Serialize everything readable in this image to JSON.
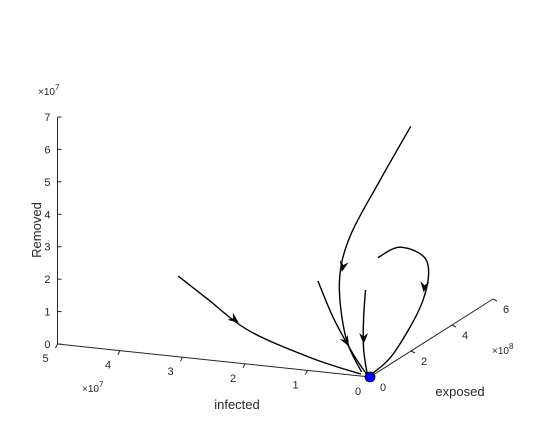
{
  "chart_data": {
    "type": "line",
    "projection": "3d",
    "xlabel": "infected",
    "ylabel": "exposed",
    "zlabel": "Removed",
    "x_multiplier": "×10^7",
    "y_multiplier": "×10^8",
    "z_multiplier": "×10^7",
    "x_ticks": [
      "0",
      "1",
      "2",
      "3",
      "4",
      "5"
    ],
    "y_ticks": [
      "0",
      "2",
      "4",
      "6"
    ],
    "z_ticks": [
      "0",
      "1",
      "2",
      "3",
      "4",
      "5",
      "6",
      "7"
    ],
    "xlim": [
      0,
      5
    ],
    "ylim": [
      0,
      6
    ],
    "zlim": [
      0,
      7
    ],
    "grid": false,
    "equilibrium_point": {
      "x": 0,
      "y": 0,
      "z": 0,
      "color": "#0000ff"
    },
    "line_color": "#000000",
    "trajectories": [
      {
        "points": [
          [
            0.3,
            2.9,
            6.5
          ],
          [
            0.6,
            2.3,
            5.0
          ],
          [
            0.85,
            1.6,
            3.5
          ],
          [
            0.85,
            1.1,
            2.3
          ],
          [
            0.55,
            0.5,
            0.9
          ],
          [
            0.15,
            0.05,
            0.1
          ]
        ]
      },
      {
        "points": [
          [
            0.3,
            1.3,
            3.1
          ],
          [
            0.0,
            1.5,
            3.4
          ],
          [
            -0.45,
            1.4,
            3.1
          ],
          [
            -0.55,
            0.9,
            2.1
          ],
          [
            -0.3,
            0.25,
            0.7
          ],
          [
            0.0,
            0.02,
            0.05
          ]
        ]
      },
      {
        "points": [
          [
            0.9,
            0.2,
            2.7
          ],
          [
            0.65,
            0.2,
            1.6
          ],
          [
            0.3,
            0.1,
            0.6
          ],
          [
            0.05,
            0.01,
            0.05
          ]
        ]
      },
      {
        "points": [
          [
            3.2,
            0.4,
            2.3
          ],
          [
            2.8,
            0.6,
            1.6
          ],
          [
            2.1,
            0.5,
            0.8
          ],
          [
            1.0,
            0.2,
            0.3
          ],
          [
            0.15,
            0.02,
            0.05
          ]
        ]
      },
      {
        "points": [
          [
            0.4,
            1.0,
            2.2
          ],
          [
            0.3,
            0.6,
            1.5
          ],
          [
            0.2,
            0.3,
            0.7
          ],
          [
            0.05,
            0.02,
            0.05
          ]
        ]
      }
    ]
  }
}
